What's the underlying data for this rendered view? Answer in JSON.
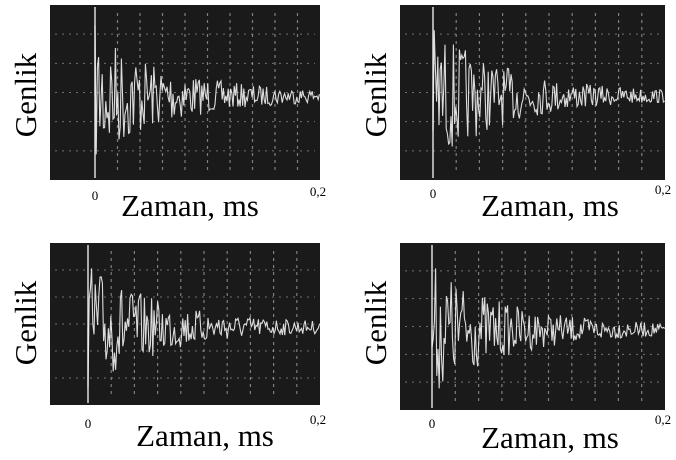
{
  "panels": [
    {
      "y_label": "Genlik",
      "x_label": "Zaman, ms",
      "x_start": "0",
      "x_end": "0,2"
    },
    {
      "y_label": "Genlik",
      "x_label": "Zaman, ms",
      "x_start": "0",
      "x_end": "0,2"
    },
    {
      "y_label": "Genlik",
      "x_label": "Zaman, ms",
      "x_start": "0",
      "x_end": "0,2"
    },
    {
      "y_label": "Genlik",
      "x_label": "Zaman, ms",
      "x_start": "0",
      "x_end": "0,2"
    }
  ]
}
